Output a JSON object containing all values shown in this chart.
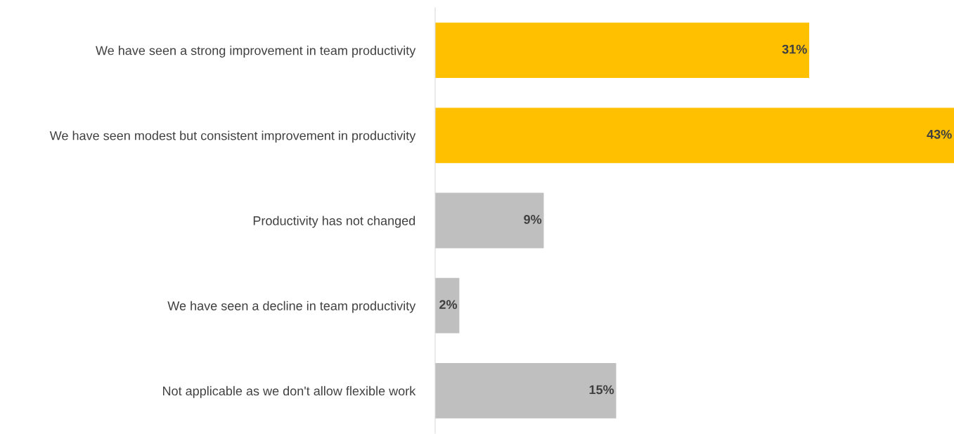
{
  "chart_data": {
    "type": "bar",
    "orientation": "horizontal",
    "categories": [
      "We have seen a strong improvement in team productivity",
      "We have seen modest but consistent improvement in productivity",
      "Productivity has not changed",
      "We have seen a decline in team productivity",
      "Not applicable as we don't allow flexible work"
    ],
    "values": [
      31,
      43,
      9,
      2,
      15
    ],
    "colors": [
      "#ffc000",
      "#ffc000",
      "#bfbfbf",
      "#bfbfbf",
      "#bfbfbf"
    ],
    "value_labels": [
      "31%",
      "43%",
      "9%",
      "2%",
      "15%"
    ],
    "grid": false,
    "legend": false
  }
}
